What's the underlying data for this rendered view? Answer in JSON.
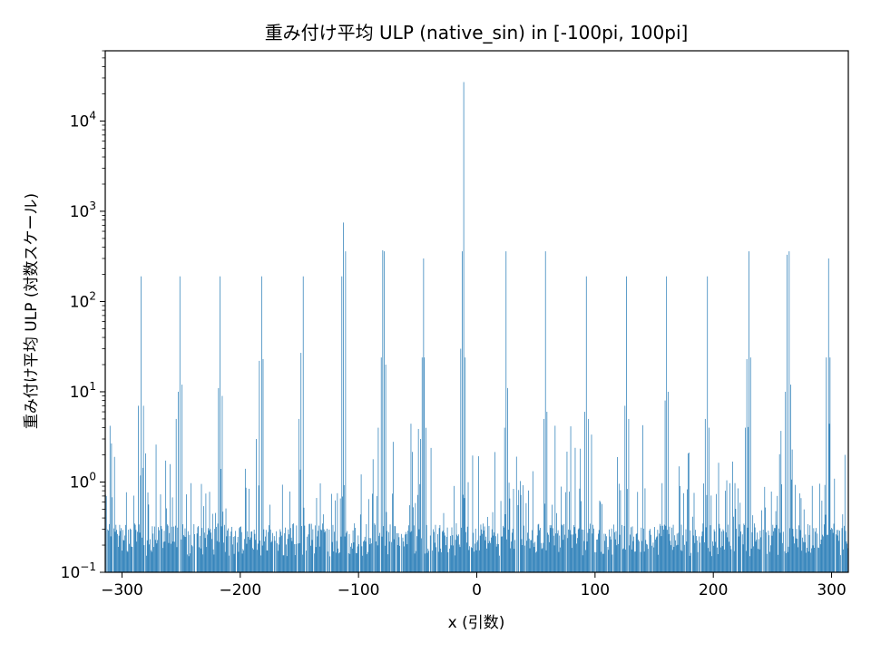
{
  "chart_data": {
    "type": "bar",
    "title": "重み付け平均 ULP (native_sin) in [-100pi, 100pi]",
    "xlabel": "x (引数)",
    "ylabel": "重み付け平均 ULP (対数スケール)",
    "yscale": "log",
    "xlim": [
      -314.16,
      314.16
    ],
    "ylim": [
      0.1,
      60000
    ],
    "bar_color": "#1f77b4",
    "grid": false,
    "legend": "none",
    "x_ticks": [
      -300,
      -200,
      -100,
      0,
      100,
      200,
      300
    ],
    "x_tick_labels": [
      "−300",
      "−200",
      "−100",
      "0",
      "100",
      "200",
      "300"
    ],
    "y_ticks": [
      0.1,
      1,
      10,
      100,
      1000,
      10000
    ],
    "y_tick_labels": [
      {
        "base": "10",
        "exp": "−1"
      },
      {
        "base": "10",
        "exp": "0"
      },
      {
        "base": "10",
        "exp": "1"
      },
      {
        "base": "10",
        "exp": "2"
      },
      {
        "base": "10",
        "exp": "3"
      },
      {
        "base": "10",
        "exp": "4"
      }
    ],
    "bins": 1000,
    "baseline_noise_range": [
      0.15,
      0.35
    ],
    "peaks": [
      {
        "x": -310.0,
        "value": 4.2
      },
      {
        "x": -306.0,
        "value": 1.9
      },
      {
        "x": -286.5,
        "value": 7.0
      },
      {
        "x": -283.8,
        "value": 190
      },
      {
        "x": -281.5,
        "value": 7.0
      },
      {
        "x": -271.2,
        "value": 2.6
      },
      {
        "x": -254.3,
        "value": 5.0
      },
      {
        "x": -252.5,
        "value": 10
      },
      {
        "x": -250.8,
        "value": 190
      },
      {
        "x": -249.2,
        "value": 12
      },
      {
        "x": -218.4,
        "value": 11
      },
      {
        "x": -216.8,
        "value": 190
      },
      {
        "x": -215.3,
        "value": 9.0
      },
      {
        "x": -186.0,
        "value": 3.0
      },
      {
        "x": -183.5,
        "value": 22
      },
      {
        "x": -182.0,
        "value": 190
      },
      {
        "x": -180.5,
        "value": 23
      },
      {
        "x": -150.5,
        "value": 5.0
      },
      {
        "x": -148.4,
        "value": 27
      },
      {
        "x": -147.0,
        "value": 190
      },
      {
        "x": -114.3,
        "value": 190
      },
      {
        "x": -112.6,
        "value": 750
      },
      {
        "x": -111.2,
        "value": 360
      },
      {
        "x": -83.0,
        "value": 4.0
      },
      {
        "x": -80.9,
        "value": 24
      },
      {
        "x": -79.4,
        "value": 370
      },
      {
        "x": -78.0,
        "value": 360
      },
      {
        "x": -76.8,
        "value": 20
      },
      {
        "x": -47.5,
        "value": 3.0
      },
      {
        "x": -46.0,
        "value": 24
      },
      {
        "x": -45.0,
        "value": 300
      },
      {
        "x": -44.0,
        "value": 24
      },
      {
        "x": -13.4,
        "value": 30
      },
      {
        "x": -12.5,
        "value": 360
      },
      {
        "x": -11.1,
        "value": 27000
      },
      {
        "x": -9.5,
        "value": 24
      },
      {
        "x": 23.3,
        "value": 4.0
      },
      {
        "x": 24.6,
        "value": 360
      },
      {
        "x": 26.0,
        "value": 11
      },
      {
        "x": 56.8,
        "value": 5.0
      },
      {
        "x": 58.2,
        "value": 360
      },
      {
        "x": 59.6,
        "value": 6.0
      },
      {
        "x": 91.5,
        "value": 6.0
      },
      {
        "x": 92.9,
        "value": 190
      },
      {
        "x": 94.3,
        "value": 5.0
      },
      {
        "x": 125.4,
        "value": 7.0
      },
      {
        "x": 126.8,
        "value": 190
      },
      {
        "x": 128.2,
        "value": 5.0
      },
      {
        "x": 159.0,
        "value": 8.0
      },
      {
        "x": 160.5,
        "value": 190
      },
      {
        "x": 162.0,
        "value": 10
      },
      {
        "x": 193.4,
        "value": 5.0
      },
      {
        "x": 194.8,
        "value": 190
      },
      {
        "x": 196.2,
        "value": 4.0
      },
      {
        "x": 227.4,
        "value": 4.0
      },
      {
        "x": 228.7,
        "value": 23
      },
      {
        "x": 230.1,
        "value": 360
      },
      {
        "x": 231.5,
        "value": 24
      },
      {
        "x": 261.0,
        "value": 10
      },
      {
        "x": 262.5,
        "value": 330
      },
      {
        "x": 264.0,
        "value": 360
      },
      {
        "x": 265.5,
        "value": 12
      },
      {
        "x": 295.8,
        "value": 24
      },
      {
        "x": 297.2,
        "value": 300
      },
      {
        "x": 298.5,
        "value": 24
      },
      {
        "x": 311.5,
        "value": 2.0
      }
    ]
  }
}
